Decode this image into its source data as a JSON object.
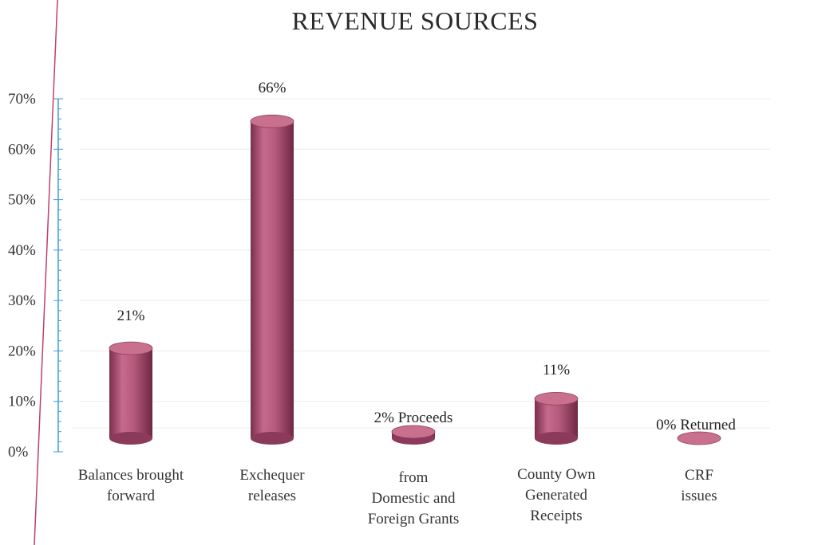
{
  "chart_data": {
    "type": "bar",
    "title": "REVENUE SOURCES",
    "xlabel": "",
    "ylabel": "",
    "ylim": [
      0,
      70
    ],
    "yticks": [
      "0%",
      "10%",
      "20%",
      "30%",
      "40%",
      "50%",
      "60%",
      "70%"
    ],
    "grid": true,
    "legend": "none",
    "categories": [
      [
        "Balances brought",
        "forward"
      ],
      [
        "Exchequer",
        "releases"
      ],
      [
        "from",
        "Domestic and",
        "Foreign Grants"
      ],
      [
        "County Own",
        "Generated",
        "Receipts"
      ],
      [
        "CRF",
        "issues"
      ]
    ],
    "values": [
      21,
      66,
      2,
      11,
      0
    ],
    "data_labels": [
      "21%",
      "66%",
      "2% Proceeds",
      "11%",
      "0% Returned"
    ],
    "colors": {
      "bar_body": "#b2577a",
      "bar_top": "#c9708f",
      "axis_line": "#c0406a",
      "axis_ticks": "#3a9be0"
    }
  }
}
